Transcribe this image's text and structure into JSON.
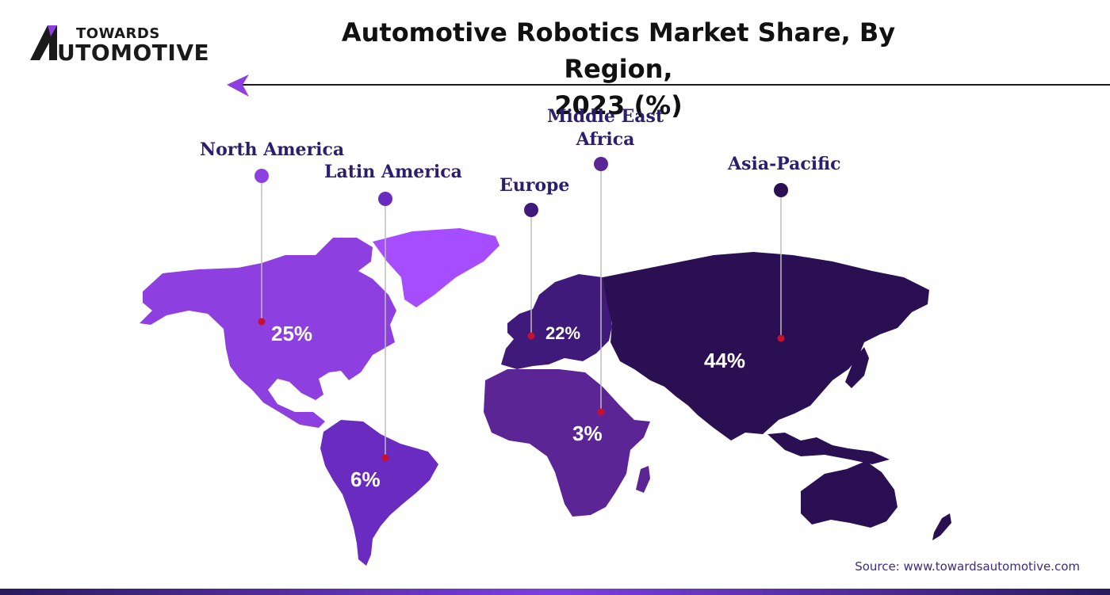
{
  "brand": {
    "top": "TOWARDS",
    "bottom": "UTOMOTIVE",
    "logo_icon": "a-logo-icon"
  },
  "title": {
    "line1": "Automotive Robotics Market Share, By Region,",
    "line2": "2023 (%)"
  },
  "regions": [
    {
      "id": "north-america",
      "label": "North America",
      "value": "25%",
      "color": "#8e3fe0"
    },
    {
      "id": "latin-america",
      "label": "Latin America",
      "value": "6%",
      "color": "#6a2cc0"
    },
    {
      "id": "europe",
      "label": "Europe",
      "value": "22%",
      "color": "#3f1a7a"
    },
    {
      "id": "middle-east-africa",
      "label_line1": "Middle East",
      "label_line2": "Africa",
      "value": "3%",
      "color": "#5b2596"
    },
    {
      "id": "asia-pacific",
      "label": "Asia-Pacific",
      "value": "44%",
      "color": "#2a0f52"
    }
  ],
  "source": "Source: www.towardsautomotive.com",
  "colors": {
    "accent": "#7b3fe0",
    "label": "#2a1f6e",
    "pin": "#c8102e",
    "greenland": "#a64dff"
  }
}
